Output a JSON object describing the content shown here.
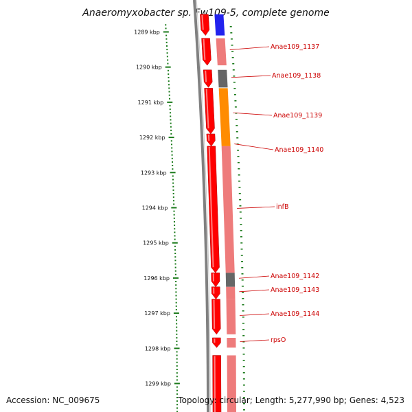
{
  "title": "Anaeromyxobacter sp. Fw109-5, complete genome",
  "footer": {
    "accession": "Accession: NC_009675",
    "topology": "Topology: circular; Length: 5,277,990 bp; Genes: 4,523"
  },
  "diagram": {
    "unit": "kbp",
    "view_start_kbp": 1288.55,
    "view_end_kbp": 1299.95,
    "scale_ticks": [
      {
        "kbp": 1289,
        "label": "1289 kbp"
      },
      {
        "kbp": 1290,
        "label": "1290 kbp"
      },
      {
        "kbp": 1291,
        "label": "1291 kbp"
      },
      {
        "kbp": 1292,
        "label": "1292 kbp"
      },
      {
        "kbp": 1293,
        "label": "1293 kbp"
      },
      {
        "kbp": 1294,
        "label": "1294 kbp"
      },
      {
        "kbp": 1295,
        "label": "1295 kbp"
      },
      {
        "kbp": 1296,
        "label": "1296 kbp"
      },
      {
        "kbp": 1297,
        "label": "1297 kbp"
      },
      {
        "kbp": 1298,
        "label": "1298 kbp"
      },
      {
        "kbp": 1299,
        "label": "1299 kbp"
      }
    ],
    "genes": [
      {
        "name": "",
        "start_kbp": 1288.5,
        "end_kbp": 1289.1,
        "strand": "+",
        "category_color": "#2222ee"
      },
      {
        "name": "Anae109_1137",
        "start_kbp": 1289.18,
        "end_kbp": 1289.95,
        "strand": "+",
        "category_color": "#ee7b7b"
      },
      {
        "name": "Anae109_1138",
        "start_kbp": 1290.08,
        "end_kbp": 1290.58,
        "strand": "+",
        "category_color": "#666666"
      },
      {
        "name": "Anae109_1139",
        "start_kbp": 1290.6,
        "end_kbp": 1291.9,
        "strand": "+",
        "category_color": "#ff8c00"
      },
      {
        "name": "Anae109_1140",
        "start_kbp": 1291.9,
        "end_kbp": 1292.25,
        "strand": "+",
        "category_color": "#ff8c00"
      },
      {
        "name": "infB",
        "start_kbp": 1292.25,
        "end_kbp": 1295.85,
        "strand": "+",
        "category_color": "#ee7b7b"
      },
      {
        "name": "Anae109_1142",
        "start_kbp": 1295.85,
        "end_kbp": 1296.25,
        "strand": "+",
        "category_color": "#666666"
      },
      {
        "name": "Anae109_1143",
        "start_kbp": 1296.25,
        "end_kbp": 1296.6,
        "strand": "+",
        "category_color": "#ee7b7b"
      },
      {
        "name": "Anae109_1144",
        "start_kbp": 1296.6,
        "end_kbp": 1297.6,
        "strand": "+",
        "category_color": "#ee7b7b"
      },
      {
        "name": "rpsO",
        "start_kbp": 1297.7,
        "end_kbp": 1297.98,
        "strand": "+",
        "category_color": "#ee7b7b"
      },
      {
        "name": "",
        "start_kbp": 1298.2,
        "end_kbp": 1299.95,
        "strand": "+",
        "category_color": "#ee7b7b"
      }
    ],
    "colors": {
      "gene_arrow": "#ff0000",
      "backbone": "#808080",
      "gene_label": "#cc0000",
      "scale_tick": "#1a7a1a"
    }
  }
}
